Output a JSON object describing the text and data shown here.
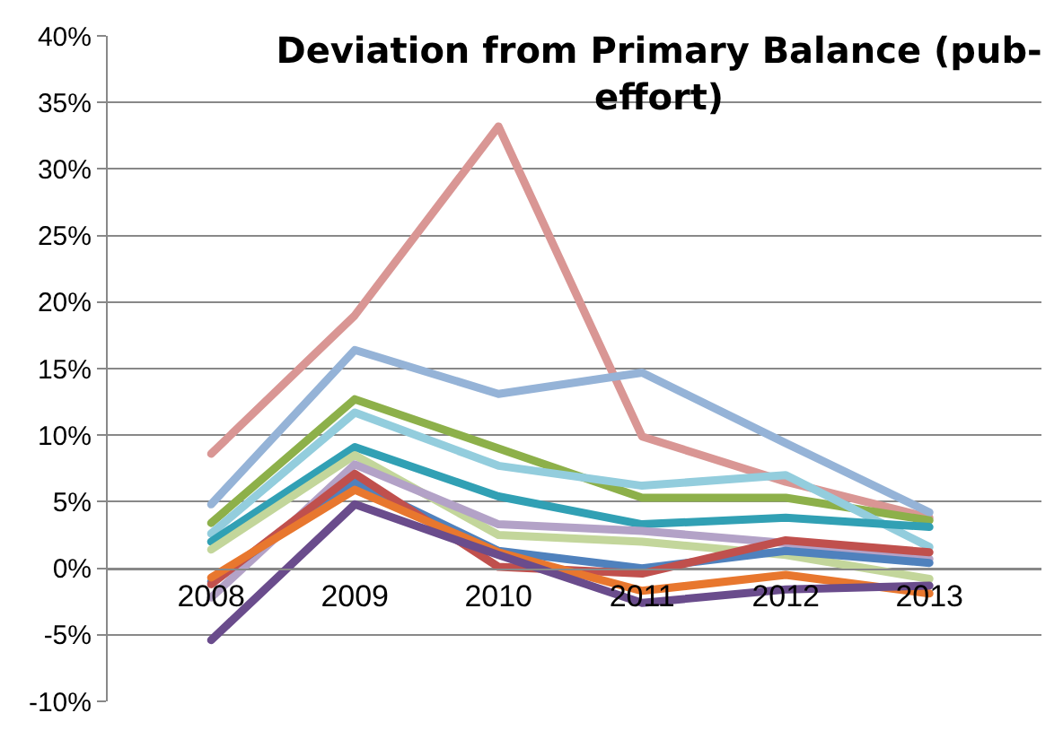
{
  "chart_data": {
    "type": "line",
    "title": "Deviation from Primary Balance (pub-effort)",
    "categories": [
      "2008",
      "2009",
      "2010",
      "2011",
      "2012",
      "2013"
    ],
    "series": [
      {
        "color": "#d99694",
        "values": [
          8.6,
          19,
          33.2,
          9.9,
          6.5,
          3.8
        ]
      },
      {
        "color": "#95b3d7",
        "values": [
          4.8,
          16.4,
          13.1,
          14.7,
          9.4,
          4.2
        ]
      },
      {
        "color": "#8db04a",
        "values": [
          3.4,
          12.7,
          9,
          5.3,
          5.3,
          3.6
        ]
      },
      {
        "color": "#93cddd",
        "values": [
          2.6,
          11.7,
          7.7,
          6.2,
          7.0,
          1.6
        ]
      },
      {
        "color": "#31a0b4",
        "values": [
          2.0,
          9.1,
          5.4,
          3.3,
          3.8,
          3.1
        ]
      },
      {
        "color": "#c3d69b",
        "values": [
          1.4,
          8.5,
          2.5,
          2.0,
          1.0,
          -0.8
        ]
      },
      {
        "color": "#b3a2c7",
        "values": [
          -2.2,
          7.8,
          3.3,
          2.8,
          1.9,
          0.7
        ]
      },
      {
        "color": "#4f81bd",
        "values": [
          -1.0,
          6.5,
          1.3,
          0,
          1.3,
          0.4
        ]
      },
      {
        "color": "#c0504d",
        "values": [
          -1.2,
          7.1,
          0.1,
          -0.4,
          2.1,
          1.2
        ]
      },
      {
        "color": "#e8772e",
        "values": [
          -0.7,
          5.9,
          1.2,
          -1.7,
          -0.5,
          -1.9
        ]
      },
      {
        "color": "#6a4c8c",
        "values": [
          -5.4,
          4.8,
          1.0,
          -2.6,
          -1.6,
          -1.3
        ]
      }
    ],
    "ylim": [
      -10,
      40
    ],
    "yticks": [
      {
        "value": -10,
        "label": "-10%"
      },
      {
        "value": -5,
        "label": "-5%"
      },
      {
        "value": 0,
        "label": "0%"
      },
      {
        "value": 5,
        "label": "5%"
      },
      {
        "value": 10,
        "label": "10%"
      },
      {
        "value": 15,
        "label": "15%"
      },
      {
        "value": 20,
        "label": "20%"
      },
      {
        "value": 25,
        "label": "25%"
      },
      {
        "value": 30,
        "label": "30%"
      },
      {
        "value": 35,
        "label": "35%"
      },
      {
        "value": 40,
        "label": "40%"
      }
    ],
    "grid": "y",
    "marker": "none",
    "line_style": "solid"
  }
}
